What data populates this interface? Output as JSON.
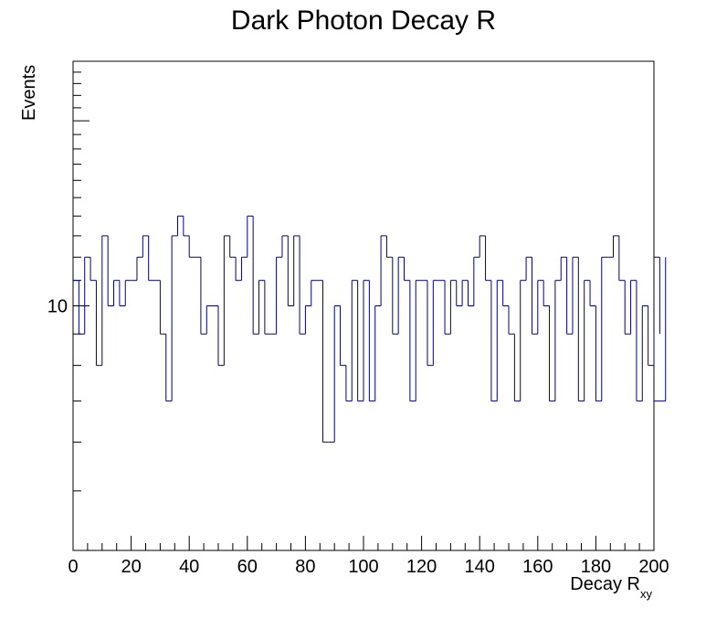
{
  "chart_data": {
    "type": "bar",
    "title": "Dark Photon Decay R",
    "xlabel": "Decay R",
    "xlabel_subscript": "xy",
    "ylabel": "Events",
    "xlim": [
      0,
      200
    ],
    "ylim": [
      4,
      25
    ],
    "yscale": "log",
    "grid": false,
    "bin_width": 2,
    "x_ticks": [
      0,
      20,
      40,
      60,
      80,
      100,
      120,
      140,
      160,
      180,
      200
    ],
    "y_tick_labels": [
      {
        "value": 10,
        "label": "10"
      }
    ],
    "line_color": "#00007f",
    "values": [
      11,
      9,
      12,
      11,
      8,
      13,
      10,
      11,
      10,
      11,
      11,
      12,
      13,
      11,
      11,
      9,
      7,
      13,
      14,
      13,
      12,
      12,
      9,
      10,
      10,
      8,
      13,
      12,
      11,
      12,
      14,
      9,
      11,
      9,
      9,
      12,
      13,
      10,
      13,
      9,
      10,
      11,
      11,
      6,
      6,
      10,
      8,
      7,
      11,
      7,
      11,
      7,
      10,
      13,
      12,
      9,
      12,
      11,
      7,
      11,
      11,
      8,
      11,
      11,
      9,
      11,
      10,
      11,
      10,
      12,
      13,
      11,
      7,
      11,
      10,
      9,
      7,
      11,
      12,
      9,
      11,
      10,
      7,
      11,
      12,
      9,
      12,
      7,
      11,
      10,
      7,
      12,
      12,
      13,
      11,
      9,
      11,
      7,
      10,
      8,
      9,
      12,
      7
    ]
  }
}
